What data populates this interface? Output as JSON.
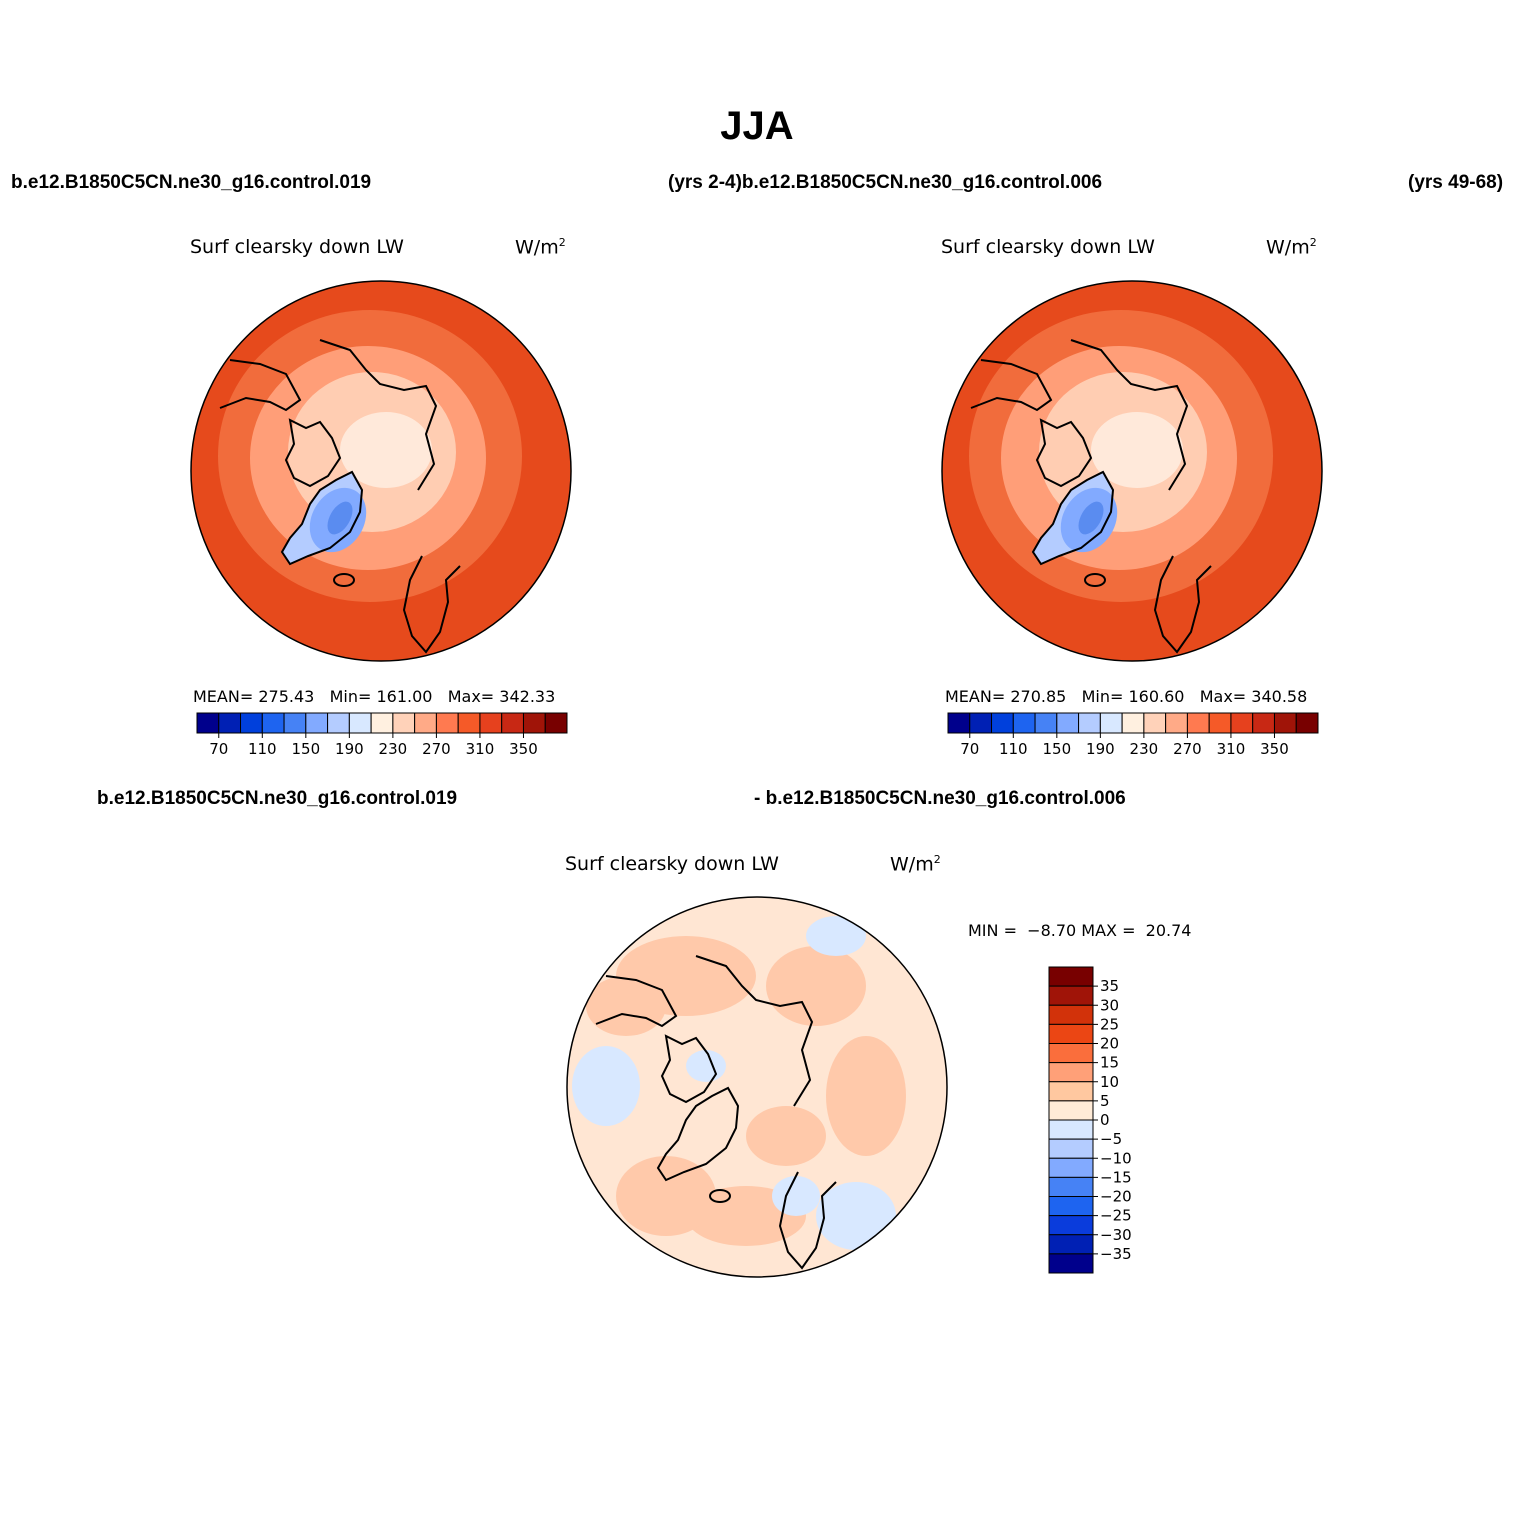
{
  "title": "JJA",
  "headers": {
    "case1": "b.e12.B1850C5CN.ne30_g16.control.019",
    "yrs1_case2": "(yrs 2-4)b.e12.B1850C5CN.ne30_g16.control.006",
    "yrs2": "(yrs 49-68)",
    "diff_case1": "b.e12.B1850C5CN.ne30_g16.control.019",
    "diff_case2": "- b.e12.B1850C5CN.ne30_g16.control.006"
  },
  "panels": [
    {
      "id": "case1",
      "variable": "Surf clearsky down LW",
      "units": "W/m",
      "units_exp": "2",
      "stats": {
        "mean_label": "MEAN=",
        "mean": "275.43",
        "min_label": "Min=",
        "min": "161.00",
        "max_label": "Max=",
        "max": "342.33"
      }
    },
    {
      "id": "case2",
      "variable": "Surf clearsky down LW",
      "units": "W/m",
      "units_exp": "2",
      "stats": {
        "mean_label": "MEAN=",
        "mean": "270.85",
        "min_label": "Min=",
        "min": "160.60",
        "max_label": "Max=",
        "max": "340.58"
      }
    },
    {
      "id": "diff",
      "variable": "Surf clearsky down LW",
      "units": "W/m",
      "units_exp": "2",
      "stats": {
        "min_label": "MIN =",
        "min": "−8.70",
        "max_label": "MAX =",
        "max": "20.74"
      }
    }
  ],
  "colorbar_abs": {
    "colors": [
      "#00008c",
      "#0020b4",
      "#0040dc",
      "#1e64f0",
      "#4682f5",
      "#82aaff",
      "#b4ccff",
      "#d8e8ff",
      "#fff0e0",
      "#ffd2b9",
      "#ffaa87",
      "#ff7a50",
      "#f55a28",
      "#e6411e",
      "#c82814",
      "#a01408",
      "#780000"
    ],
    "tick_labels": [
      "70",
      "110",
      "150",
      "190",
      "230",
      "270",
      "310",
      "350"
    ]
  },
  "colorbar_diff": {
    "colors": [
      "#780000",
      "#a01408",
      "#d2320a",
      "#eb4614",
      "#fa6e3c",
      "#ffa078",
      "#ffc8a0",
      "#ffebd7",
      "#d8e8ff",
      "#b4ccff",
      "#82aaff",
      "#4682f5",
      "#1e64f0",
      "#0a3cdc",
      "#0020b4",
      "#00008c"
    ],
    "tick_labels": [
      "35",
      "30",
      "25",
      "20",
      "15",
      "10",
      "5",
      "0",
      "−5",
      "−10",
      "−15",
      "−20",
      "−25",
      "−30",
      "−35"
    ]
  },
  "map_colors": {
    "outer": "#e64a1c",
    "mid1": "#f16c3c",
    "mid2": "#ff9e78",
    "inner": "#ffcdb2",
    "pole": "#ffe9da",
    "greenland_edge": "#b4ccff",
    "greenland_low": "#82aaff",
    "greenland_min": "#5a8cf0",
    "diff_base": "#ffe6d3",
    "diff_pos": "#ffc9aa",
    "diff_neg": "#d8e8ff",
    "land_line": "#000000"
  }
}
